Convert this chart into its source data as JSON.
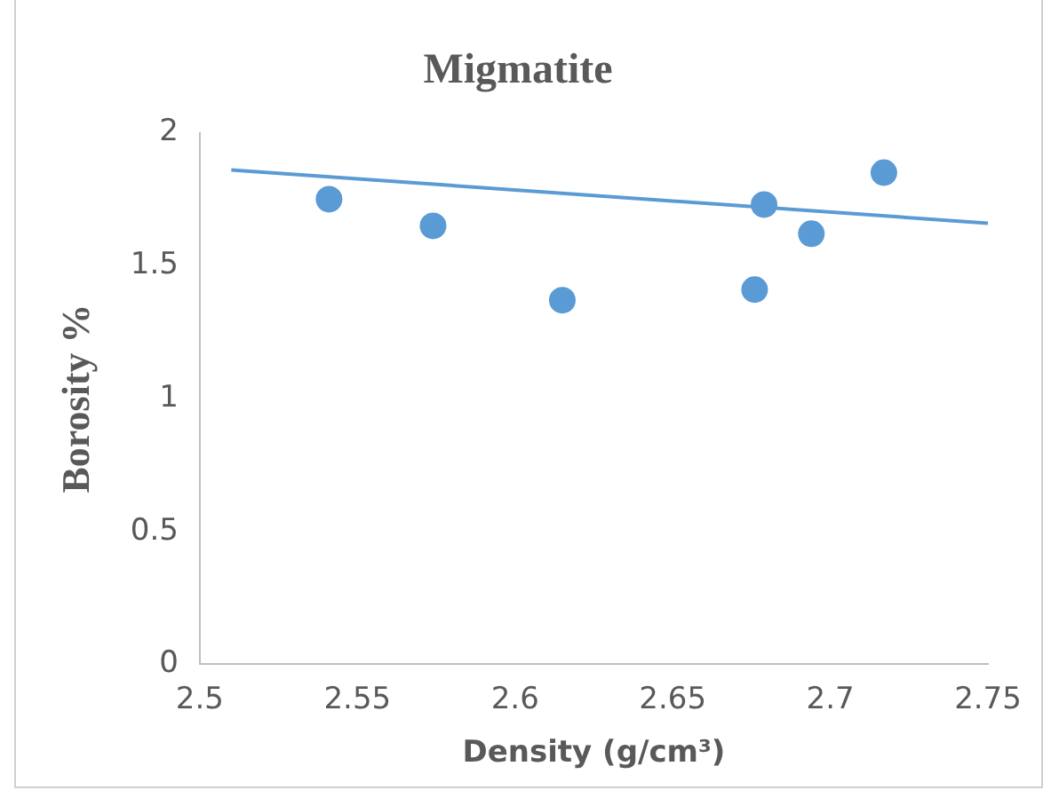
{
  "chart_data": {
    "type": "scatter",
    "title": "Migmatite",
    "xlabel": "Density (g/cm³)",
    "ylabel": "Borosity %",
    "series": [
      {
        "type": "scatter",
        "color": "#5b9bd5",
        "marker": "circle",
        "x": [
          2.541,
          2.574,
          2.615,
          2.676,
          2.679,
          2.694,
          2.717
        ],
        "values": [
          1.75,
          1.65,
          1.37,
          1.41,
          1.73,
          1.62,
          1.85
        ]
      },
      {
        "type": "line",
        "color": "#5b9bd5",
        "marker": "none",
        "x": [
          2.51,
          2.75
        ],
        "values": [
          1.86,
          1.66
        ]
      }
    ],
    "xlim": [
      2.5,
      2.75
    ],
    "xticks": [
      2.5,
      2.55,
      2.6,
      2.65,
      2.7,
      2.75
    ],
    "ylim": [
      0,
      2
    ],
    "yticks": [
      0,
      0.5,
      1,
      1.5,
      2
    ],
    "grid": false,
    "legend": false
  }
}
